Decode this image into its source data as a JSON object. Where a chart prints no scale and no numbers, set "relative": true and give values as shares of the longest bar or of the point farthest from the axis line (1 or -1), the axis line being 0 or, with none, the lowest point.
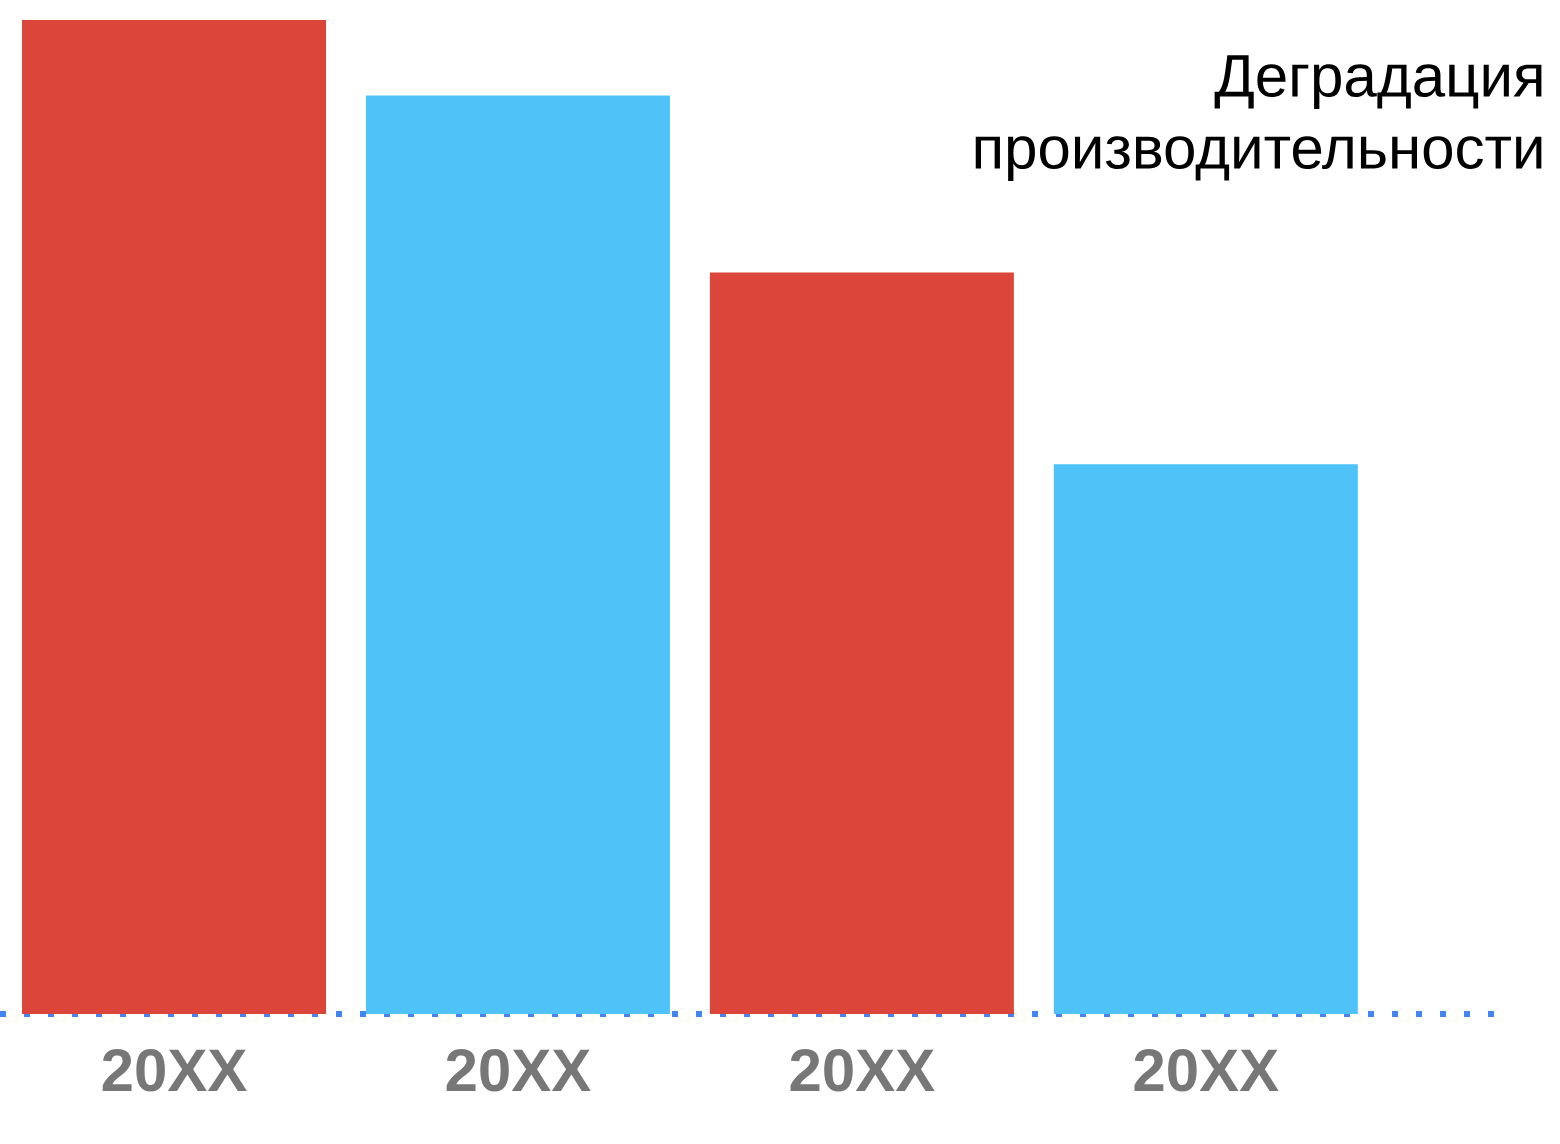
{
  "chart_data": {
    "type": "bar",
    "title": "Деградация производительности",
    "relative": true,
    "categories": [
      "20XX",
      "20XX",
      "20XX",
      "20XX"
    ],
    "values": [
      1,
      0.924,
      0.746,
      0.553
    ],
    "colors": [
      "#dc4539",
      "#4fc3f7",
      "#dc4539",
      "#4fc3f7"
    ]
  }
}
